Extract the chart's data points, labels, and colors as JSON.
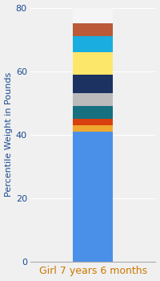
{
  "segments": [
    {
      "value": 41,
      "color": "#4A90E8"
    },
    {
      "value": 2,
      "color": "#F0A830"
    },
    {
      "value": 2,
      "color": "#D94010"
    },
    {
      "value": 4,
      "color": "#167080"
    },
    {
      "value": 4,
      "color": "#BBBBBB"
    },
    {
      "value": 6,
      "color": "#1C3260"
    },
    {
      "value": 7,
      "color": "#FDE76A"
    },
    {
      "value": 5,
      "color": "#1AAEE0"
    },
    {
      "value": 4,
      "color": "#BA5A38"
    },
    {
      "value": 5,
      "color": "#F5F5F5"
    }
  ],
  "ylabel": "Percentile Weight in Pounds",
  "xlabel": "Girl 7 years 6 months",
  "ylim": [
    0,
    80
  ],
  "yticks": [
    0,
    20,
    40,
    60,
    80
  ],
  "background_color": "#F0F0F0",
  "ylabel_fontsize": 8,
  "xlabel_fontsize": 9,
  "ytick_fontsize": 8,
  "bar_width": 0.45
}
